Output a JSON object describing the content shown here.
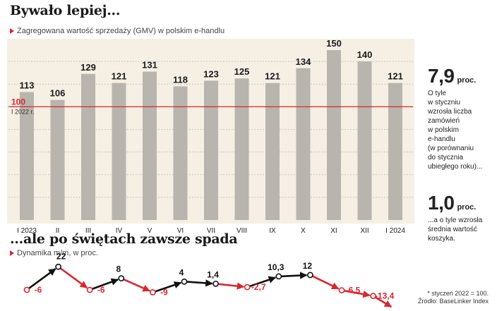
{
  "header": {
    "title": "Bywało lepiej...",
    "subtitle": "Zagregowana wartość sprzedaży (GMV) w polskim e-handlu"
  },
  "lower": {
    "title": "...ale po świętach zawsze spada",
    "subtitle": "Dynamika m/m, w proc."
  },
  "stats": {
    "first_value": "7,9",
    "first_unit": "proc.",
    "first_text": [
      "O tyle",
      "w styczniu",
      "wzrosła liczba",
      "zamówień",
      "w polskim",
      "e-handlu",
      "(w porównaniu",
      "do stycznia",
      "ubiegłego roku)..."
    ],
    "second_value": "1,0",
    "second_unit": "proc.",
    "second_text": [
      "...a o tyle wzrosła",
      "średnia wartość",
      "koszyka."
    ]
  },
  "source": {
    "note": "* styczeń 2022 = 100.",
    "text": "Źródło: BaseLinker Index"
  },
  "colors": {
    "bar": "#b8b5ae",
    "panel": "#f5efe4",
    "accent": "#d9272e",
    "positive": "#111111"
  },
  "chart_data": [
    {
      "type": "bar",
      "categories": [
        "I 2023",
        "II",
        "III",
        "IV",
        "V",
        "VI",
        "VII",
        "VIII",
        "IX",
        "X",
        "XI",
        "XII",
        "I 2024"
      ],
      "values": [
        113,
        106,
        129,
        121,
        131,
        118,
        123,
        125,
        121,
        134,
        150,
        140,
        121
      ],
      "reference_line": {
        "value": 100,
        "label": "100",
        "sublabel": "I 2022 r."
      },
      "ylim": [
        0,
        160
      ],
      "grid": true
    },
    {
      "type": "line",
      "values": [
        -6,
        22,
        -6,
        8,
        -9,
        4,
        1.4,
        -2.7,
        10.3,
        12,
        -6.5,
        -13.4
      ],
      "labels": [
        "-6",
        "22",
        "-6",
        "8",
        "-9",
        "4",
        "1,4",
        "-2,7",
        "10,3",
        "12",
        "-6,5",
        "-13,4"
      ]
    }
  ]
}
